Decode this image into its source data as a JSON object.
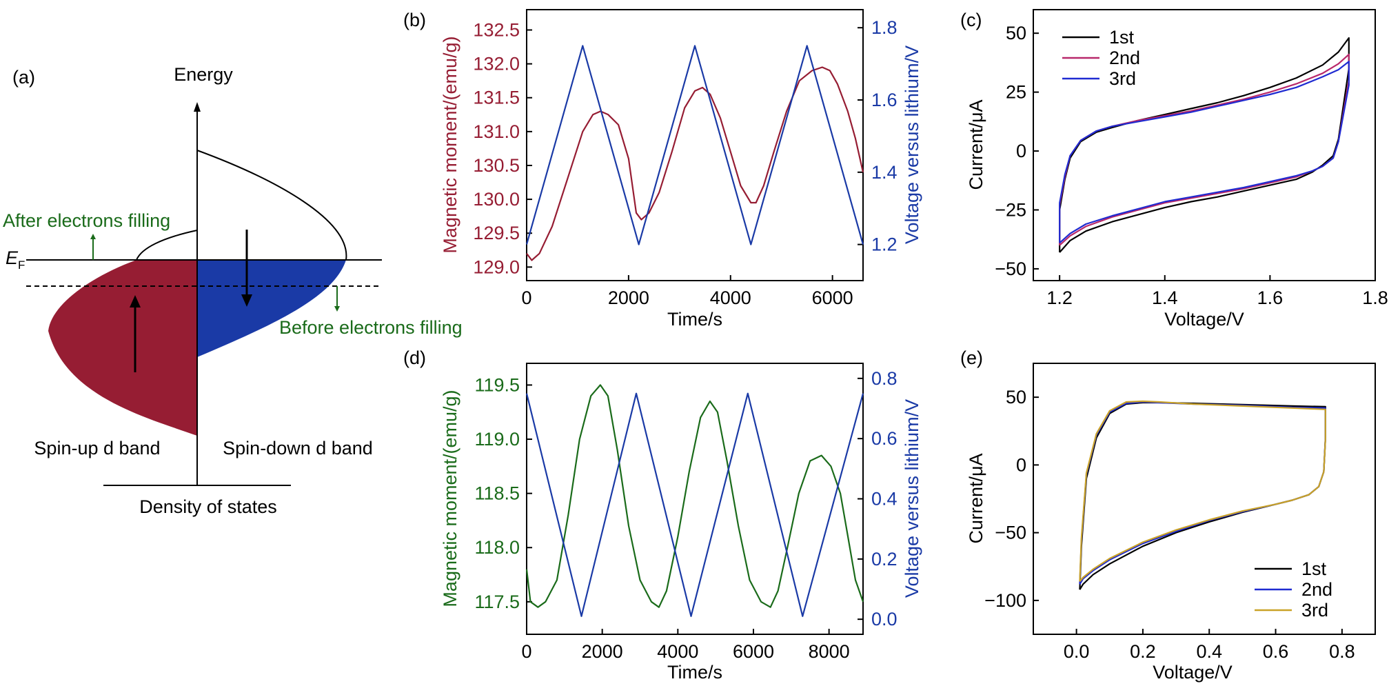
{
  "panel_a": {
    "panel_label": "(a)",
    "y_axis_label": "Energy",
    "x_axis_label": "Density of states",
    "fermi_symbol": "E",
    "fermi_subscript": "F",
    "after_label": "After electrons filling",
    "before_label": "Before electrons filling",
    "spin_up_label": "Spin-up d band",
    "spin_down_label": "Spin-down d band",
    "colors": {
      "spin_up": "#961d33",
      "spin_down": "#1a3aa6",
      "annotation": "#1a6b1a"
    }
  },
  "chart_data": [
    {
      "panel": "(b)",
      "type": "line",
      "xlabel": "Time/s",
      "ylabel_left": "Magnetic moment/(emu/g)",
      "ylabel_right": "Voltage versus lithium/V",
      "xlim": [
        0,
        6600
      ],
      "ylim_left": [
        128.8,
        132.8
      ],
      "ylim_right": [
        1.1,
        1.85
      ],
      "xticks": [
        0,
        2000,
        4000,
        6000
      ],
      "yticks_left": [
        129.0,
        129.5,
        130.0,
        130.5,
        131.0,
        131.5,
        132.0,
        132.5
      ],
      "yticks_right": [
        1.2,
        1.4,
        1.6,
        1.8
      ],
      "left_color": "#961d33",
      "right_color": "#1a3aa6",
      "series": [
        {
          "axis": "left",
          "color": "#961d33",
          "x": [
            0,
            100,
            250,
            500,
            800,
            1100,
            1300,
            1450,
            1600,
            1800,
            2000,
            2150,
            2250,
            2400,
            2600,
            2850,
            3100,
            3300,
            3450,
            3600,
            3800,
            4000,
            4200,
            4400,
            4500,
            4650,
            4850,
            5100,
            5350,
            5600,
            5800,
            5950,
            6100,
            6300,
            6450,
            6600
          ],
          "y": [
            129.2,
            129.1,
            129.2,
            129.6,
            130.3,
            131.0,
            131.25,
            131.3,
            131.25,
            131.1,
            130.6,
            129.8,
            129.7,
            129.8,
            130.1,
            130.7,
            131.35,
            131.6,
            131.65,
            131.55,
            131.2,
            130.7,
            130.2,
            129.95,
            129.95,
            130.2,
            130.7,
            131.3,
            131.75,
            131.9,
            131.95,
            131.9,
            131.7,
            131.3,
            130.9,
            130.4
          ]
        },
        {
          "axis": "right",
          "color": "#1a3aa6",
          "x": [
            0,
            1100,
            2200,
            3300,
            4400,
            5500,
            6600
          ],
          "y": [
            1.2,
            1.75,
            1.2,
            1.75,
            1.2,
            1.75,
            1.2
          ]
        }
      ]
    },
    {
      "panel": "(c)",
      "type": "line",
      "xlabel": "Voltage/V",
      "ylabel": "Current/μA",
      "xlim": [
        1.15,
        1.8
      ],
      "ylim": [
        -55,
        60
      ],
      "xticks": [
        1.2,
        1.4,
        1.6,
        1.8
      ],
      "yticks": [
        -50,
        -25,
        0,
        25,
        50
      ],
      "legend": {
        "location": "top-left",
        "entries": [
          "1st",
          "2nd",
          "3rd"
        ]
      },
      "series": [
        {
          "name": "1st",
          "color": "#000000",
          "x": [
            1.2,
            1.2,
            1.21,
            1.22,
            1.24,
            1.27,
            1.3,
            1.35,
            1.4,
            1.45,
            1.5,
            1.55,
            1.6,
            1.65,
            1.7,
            1.73,
            1.75,
            1.75,
            1.74,
            1.73,
            1.72,
            1.7,
            1.68,
            1.65,
            1.6,
            1.55,
            1.5,
            1.45,
            1.4,
            1.35,
            1.3,
            1.25,
            1.22,
            1.2
          ],
          "y": [
            -43,
            -25,
            -12,
            -3,
            4,
            8,
            10,
            13,
            15.5,
            18,
            20.5,
            23.5,
            27,
            31,
            36.5,
            42,
            48,
            35,
            20,
            5,
            -2,
            -6,
            -9,
            -12,
            -14.5,
            -17,
            -19.5,
            -21.5,
            -24,
            -27,
            -30,
            -34,
            -38,
            -43
          ]
        },
        {
          "name": "2nd",
          "color": "#b8286a",
          "x": [
            1.2,
            1.2,
            1.21,
            1.22,
            1.24,
            1.27,
            1.3,
            1.35,
            1.4,
            1.45,
            1.5,
            1.55,
            1.6,
            1.65,
            1.7,
            1.73,
            1.75,
            1.75,
            1.74,
            1.73,
            1.72,
            1.7,
            1.68,
            1.65,
            1.6,
            1.55,
            1.5,
            1.45,
            1.4,
            1.35,
            1.3,
            1.25,
            1.22,
            1.2
          ],
          "y": [
            -40,
            -23,
            -11,
            -2,
            4.5,
            8.5,
            10.5,
            13,
            15,
            17,
            19.5,
            22,
            25,
            28.5,
            33,
            37,
            41,
            30,
            17,
            4,
            -3,
            -6.5,
            -8.5,
            -11,
            -13.5,
            -16,
            -18,
            -20,
            -22,
            -25,
            -28,
            -32,
            -36,
            -40
          ]
        },
        {
          "name": "3rd",
          "color": "#1f2bd1",
          "x": [
            1.2,
            1.2,
            1.21,
            1.22,
            1.24,
            1.27,
            1.3,
            1.35,
            1.4,
            1.45,
            1.5,
            1.55,
            1.6,
            1.65,
            1.7,
            1.73,
            1.75,
            1.75,
            1.74,
            1.73,
            1.72,
            1.7,
            1.68,
            1.65,
            1.6,
            1.55,
            1.5,
            1.45,
            1.4,
            1.35,
            1.3,
            1.25,
            1.22,
            1.2
          ],
          "y": [
            -39,
            -22,
            -10,
            -2,
            4.5,
            8.5,
            10.5,
            12.5,
            14.5,
            16.5,
            19,
            21.5,
            24,
            27,
            31.5,
            34.5,
            38,
            28,
            16,
            4,
            -3,
            -6.5,
            -8.5,
            -10.5,
            -13,
            -15.5,
            -17.5,
            -19.5,
            -21.5,
            -24.5,
            -27.5,
            -31,
            -35,
            -39
          ]
        }
      ]
    },
    {
      "panel": "(d)",
      "type": "line",
      "xlabel": "Time/s",
      "ylabel_left": "Magnetic moment/(emu/g)",
      "ylabel_right": "Voltage versus lithium/V",
      "xlim": [
        0,
        8900
      ],
      "ylim_left": [
        117.2,
        119.7
      ],
      "ylim_right": [
        -0.05,
        0.85
      ],
      "xticks": [
        0,
        2000,
        4000,
        6000,
        8000
      ],
      "yticks_left": [
        117.5,
        118.0,
        118.5,
        119.0,
        119.5
      ],
      "yticks_right": [
        0.0,
        0.2,
        0.4,
        0.6,
        0.8
      ],
      "left_color": "#1a6b1a",
      "right_color": "#1a3aa6",
      "series": [
        {
          "axis": "left",
          "color": "#1a6b1a",
          "x": [
            0,
            100,
            300,
            500,
            800,
            1100,
            1400,
            1700,
            1950,
            2150,
            2400,
            2700,
            3000,
            3300,
            3500,
            3700,
            4000,
            4300,
            4600,
            4850,
            5050,
            5300,
            5600,
            5900,
            6200,
            6450,
            6650,
            6900,
            7200,
            7500,
            7800,
            8050,
            8300,
            8500,
            8700,
            8900
          ],
          "y": [
            117.8,
            117.5,
            117.45,
            117.5,
            117.7,
            118.3,
            119.0,
            119.4,
            119.5,
            119.4,
            118.9,
            118.2,
            117.7,
            117.5,
            117.45,
            117.6,
            118.1,
            118.7,
            119.2,
            119.35,
            119.25,
            118.8,
            118.2,
            117.7,
            117.5,
            117.45,
            117.6,
            118.0,
            118.5,
            118.8,
            118.85,
            118.75,
            118.5,
            118.1,
            117.7,
            117.5
          ]
        },
        {
          "axis": "right",
          "color": "#1a3aa6",
          "x": [
            0,
            1450,
            2900,
            4350,
            5850,
            7300,
            8900
          ],
          "y": [
            0.75,
            0.01,
            0.75,
            0.01,
            0.75,
            0.01,
            0.75
          ]
        }
      ]
    },
    {
      "panel": "(e)",
      "type": "line",
      "xlabel": "Voltage/V",
      "ylabel": "Current/μA",
      "xlim": [
        -0.13,
        0.9
      ],
      "ylim": [
        -125,
        75
      ],
      "xticks": [
        0.0,
        0.2,
        0.4,
        0.6,
        0.8
      ],
      "yticks": [
        -100,
        -50,
        0,
        50
      ],
      "legend": {
        "location": "bottom-right",
        "entries": [
          "1st",
          "2nd",
          "3rd"
        ]
      },
      "series": [
        {
          "name": "1st",
          "color": "#000000",
          "x": [
            0.01,
            0.015,
            0.03,
            0.06,
            0.1,
            0.15,
            0.2,
            0.25,
            0.35,
            0.5,
            0.65,
            0.75,
            0.75,
            0.745,
            0.73,
            0.7,
            0.65,
            0.6,
            0.5,
            0.4,
            0.3,
            0.2,
            0.1,
            0.05,
            0.02,
            0.01
          ],
          "y": [
            -92,
            -60,
            -10,
            20,
            38,
            45,
            46,
            46,
            45.5,
            44.5,
            43.5,
            43,
            20,
            -5,
            -16,
            -22,
            -26,
            -29,
            -35,
            -42,
            -50,
            -60,
            -73,
            -81,
            -88,
            -92
          ]
        },
        {
          "name": "2nd",
          "color": "#1f2bd1",
          "x": [
            0.01,
            0.015,
            0.03,
            0.06,
            0.1,
            0.15,
            0.2,
            0.25,
            0.35,
            0.5,
            0.65,
            0.75,
            0.75,
            0.745,
            0.73,
            0.7,
            0.65,
            0.6,
            0.5,
            0.4,
            0.3,
            0.2,
            0.1,
            0.05,
            0.02,
            0.01
          ],
          "y": [
            -88,
            -56,
            -7,
            22,
            39,
            45.5,
            46.5,
            46,
            45,
            44,
            42.5,
            42,
            20,
            -5,
            -16,
            -22,
            -26,
            -29,
            -34.5,
            -41,
            -49,
            -58,
            -70,
            -78,
            -84,
            -88
          ]
        },
        {
          "name": "3rd",
          "color": "#c9a227",
          "x": [
            0.01,
            0.015,
            0.03,
            0.06,
            0.1,
            0.15,
            0.2,
            0.25,
            0.35,
            0.5,
            0.65,
            0.75,
            0.75,
            0.745,
            0.73,
            0.7,
            0.65,
            0.6,
            0.5,
            0.4,
            0.3,
            0.2,
            0.1,
            0.05,
            0.02,
            0.01
          ],
          "y": [
            -86,
            -54,
            -6,
            23,
            40,
            46.5,
            47,
            46.5,
            45,
            43.5,
            42,
            41,
            19,
            -5,
            -16,
            -22,
            -26,
            -29,
            -34,
            -40.5,
            -48,
            -57,
            -69,
            -77,
            -83,
            -86
          ]
        }
      ]
    }
  ]
}
